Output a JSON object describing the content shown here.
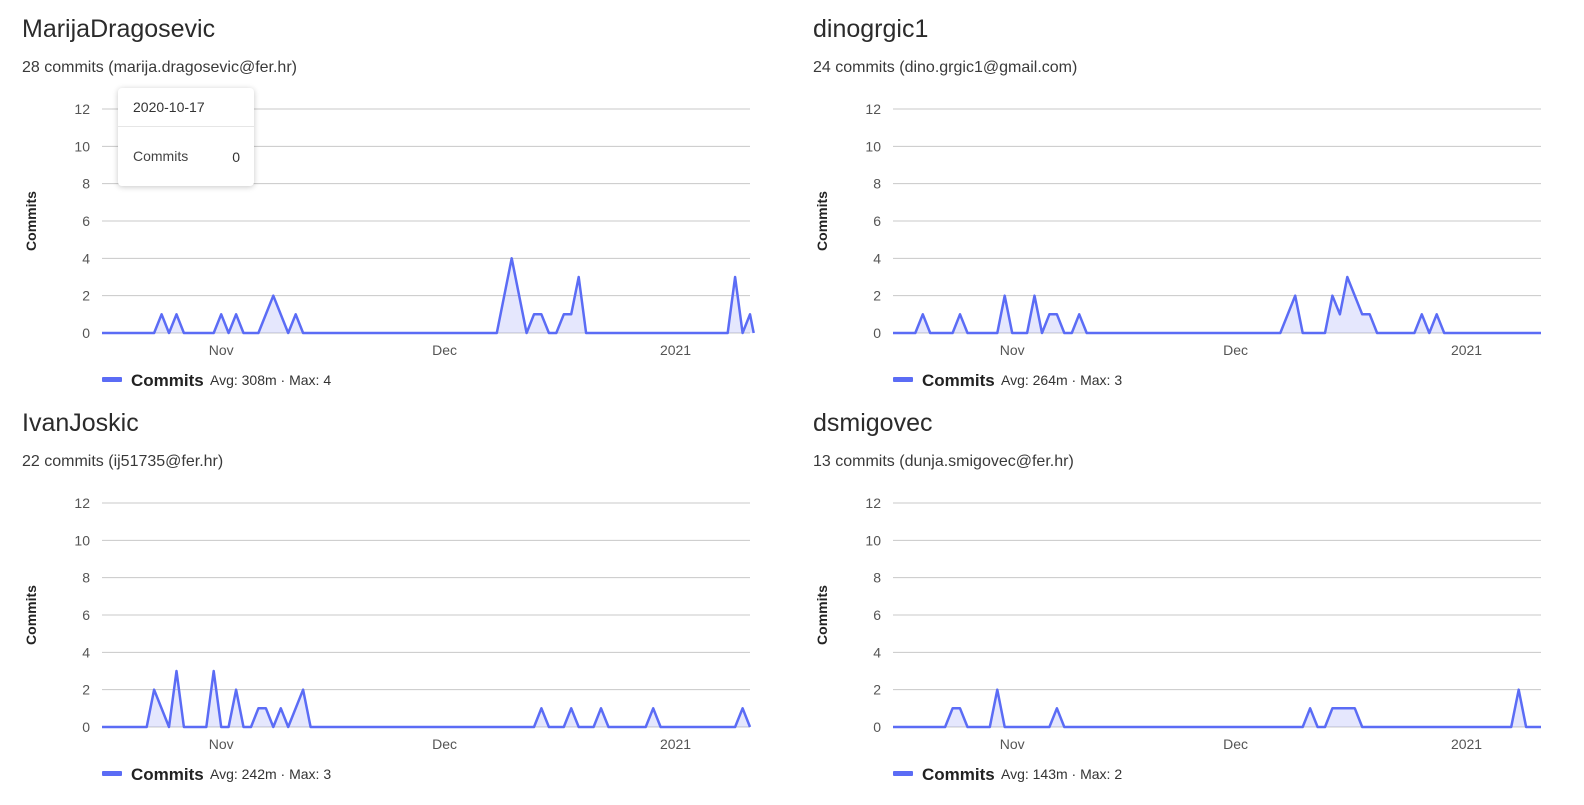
{
  "accent_color": "#5b6cf5",
  "contributors": [
    {
      "name": "MarijaDragosevic",
      "summary": "28 commits (marija.dragosevic@fer.hr)",
      "legend": {
        "label": "Commits",
        "stats": "Avg: 308m · Max: 4"
      },
      "chart_data": {
        "type": "area",
        "ylabel": "Commits",
        "ylim": [
          0,
          12
        ],
        "yticks": [
          "0",
          "2",
          "4",
          "6",
          "8",
          "10",
          "12"
        ],
        "xticks": [
          {
            "label": "Nov",
            "day": 15
          },
          {
            "label": "Dec",
            "day": 45
          },
          {
            "label": "2021",
            "day": 76
          }
        ],
        "xlim": [
          -1,
          86
        ],
        "points": [
          [
            -1,
            0
          ],
          [
            6,
            0
          ],
          [
            7,
            1
          ],
          [
            8,
            0
          ],
          [
            9,
            1
          ],
          [
            10,
            0
          ],
          [
            14,
            0
          ],
          [
            15,
            1
          ],
          [
            16,
            0
          ],
          [
            17,
            1
          ],
          [
            18,
            0
          ],
          [
            20,
            0
          ],
          [
            22,
            2
          ],
          [
            24,
            0
          ],
          [
            25,
            1
          ],
          [
            26,
            0
          ],
          [
            52,
            0
          ],
          [
            54,
            4
          ],
          [
            56,
            0
          ],
          [
            57,
            1
          ],
          [
            58,
            1
          ],
          [
            59,
            0
          ],
          [
            60,
            0
          ],
          [
            61,
            1
          ],
          [
            62,
            1
          ],
          [
            63,
            3
          ],
          [
            64,
            0
          ],
          [
            83,
            0
          ],
          [
            84,
            3
          ],
          [
            85,
            0
          ],
          [
            86,
            1
          ],
          [
            86.5,
            0
          ]
        ]
      },
      "tooltip": {
        "date": "2020-10-17",
        "label": "Commits",
        "value": "0"
      }
    },
    {
      "name": "dinogrgic1",
      "summary": "24 commits (dino.grgic1@gmail.com)",
      "legend": {
        "label": "Commits",
        "stats": "Avg: 264m · Max: 3"
      },
      "chart_data": {
        "type": "area",
        "ylabel": "Commits",
        "ylim": [
          0,
          12
        ],
        "yticks": [
          "0",
          "2",
          "4",
          "6",
          "8",
          "10",
          "12"
        ],
        "xticks": [
          {
            "label": "Nov",
            "day": 15
          },
          {
            "label": "Dec",
            "day": 45
          },
          {
            "label": "2021",
            "day": 76
          }
        ],
        "xlim": [
          -1,
          86
        ],
        "points": [
          [
            -1,
            0
          ],
          [
            2,
            0
          ],
          [
            3,
            1
          ],
          [
            4,
            0
          ],
          [
            7,
            0
          ],
          [
            8,
            1
          ],
          [
            9,
            0
          ],
          [
            13,
            0
          ],
          [
            14,
            2
          ],
          [
            15,
            0
          ],
          [
            17,
            0
          ],
          [
            18,
            2
          ],
          [
            19,
            0
          ],
          [
            20,
            1
          ],
          [
            21,
            1
          ],
          [
            22,
            0
          ],
          [
            23,
            0
          ],
          [
            24,
            1
          ],
          [
            25,
            0
          ],
          [
            51,
            0
          ],
          [
            53,
            2
          ],
          [
            54,
            0
          ],
          [
            57,
            0
          ],
          [
            58,
            2
          ],
          [
            59,
            1
          ],
          [
            60,
            3
          ],
          [
            62,
            1
          ],
          [
            63,
            1
          ],
          [
            64,
            0
          ],
          [
            69,
            0
          ],
          [
            70,
            1
          ],
          [
            71,
            0
          ],
          [
            72,
            1
          ],
          [
            73,
            0
          ],
          [
            86,
            0
          ]
        ]
      }
    },
    {
      "name": "IvanJoskic",
      "summary": "22 commits (ij51735@fer.hr)",
      "legend": {
        "label": "Commits",
        "stats": "Avg: 242m · Max: 3"
      },
      "chart_data": {
        "type": "area",
        "ylabel": "Commits",
        "ylim": [
          0,
          12
        ],
        "yticks": [
          "0",
          "2",
          "4",
          "6",
          "8",
          "10",
          "12"
        ],
        "xticks": [
          {
            "label": "Nov",
            "day": 15
          },
          {
            "label": "Dec",
            "day": 45
          },
          {
            "label": "2021",
            "day": 76
          }
        ],
        "xlim": [
          -1,
          86
        ],
        "points": [
          [
            -1,
            0
          ],
          [
            5,
            0
          ],
          [
            6,
            2
          ],
          [
            8,
            0
          ],
          [
            9,
            3
          ],
          [
            10,
            0
          ],
          [
            13,
            0
          ],
          [
            14,
            3
          ],
          [
            15,
            0
          ],
          [
            16,
            0
          ],
          [
            17,
            2
          ],
          [
            18,
            0
          ],
          [
            19,
            0
          ],
          [
            20,
            1
          ],
          [
            21,
            1
          ],
          [
            22,
            0
          ],
          [
            23,
            1
          ],
          [
            24,
            0
          ],
          [
            26,
            2
          ],
          [
            27,
            0
          ],
          [
            57,
            0
          ],
          [
            58,
            1
          ],
          [
            59,
            0
          ],
          [
            61,
            0
          ],
          [
            62,
            1
          ],
          [
            63,
            0
          ],
          [
            65,
            0
          ],
          [
            66,
            1
          ],
          [
            67,
            0
          ],
          [
            72,
            0
          ],
          [
            73,
            1
          ],
          [
            74,
            0
          ],
          [
            84,
            0
          ],
          [
            85,
            1
          ],
          [
            86,
            0
          ]
        ]
      }
    },
    {
      "name": "dsmigovec",
      "summary": "13 commits (dunja.smigovec@fer.hr)",
      "legend": {
        "label": "Commits",
        "stats": "Avg: 143m · Max: 2"
      },
      "chart_data": {
        "type": "area",
        "ylabel": "Commits",
        "ylim": [
          0,
          12
        ],
        "yticks": [
          "0",
          "2",
          "4",
          "6",
          "8",
          "10",
          "12"
        ],
        "xticks": [
          {
            "label": "Nov",
            "day": 15
          },
          {
            "label": "Dec",
            "day": 45
          },
          {
            "label": "2021",
            "day": 76
          }
        ],
        "xlim": [
          -1,
          86
        ],
        "points": [
          [
            -1,
            0
          ],
          [
            6,
            0
          ],
          [
            7,
            1
          ],
          [
            8,
            1
          ],
          [
            9,
            0
          ],
          [
            12,
            0
          ],
          [
            13,
            2
          ],
          [
            14,
            0
          ],
          [
            20,
            0
          ],
          [
            21,
            1
          ],
          [
            22,
            0
          ],
          [
            54,
            0
          ],
          [
            55,
            1
          ],
          [
            56,
            0
          ],
          [
            57,
            0
          ],
          [
            58,
            1
          ],
          [
            61,
            1
          ],
          [
            62,
            0
          ],
          [
            82,
            0
          ],
          [
            83,
            2
          ],
          [
            84,
            0
          ],
          [
            86,
            0
          ]
        ]
      }
    }
  ]
}
